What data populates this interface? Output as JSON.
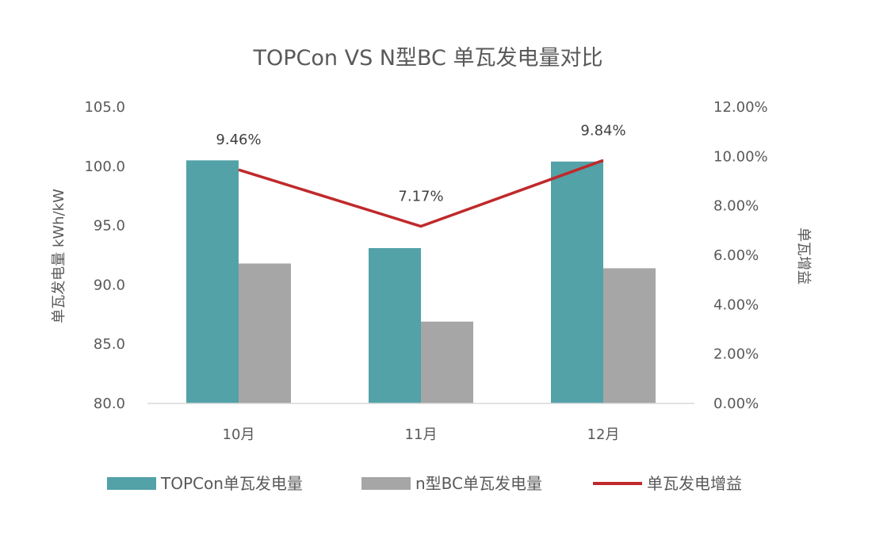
{
  "chart_data": {
    "type": "bar",
    "title": "TOPCon VS N型BC 单瓦发电量对比",
    "categories": [
      "10月",
      "11月",
      "12月"
    ],
    "series": [
      {
        "name": "TOPCon单瓦发电量",
        "type": "bar",
        "axis": "left",
        "color": "#52A2A8",
        "values": [
          100.5,
          93.1,
          100.4
        ]
      },
      {
        "name": "n型BC单瓦发电量",
        "type": "bar",
        "axis": "left",
        "color": "#A6A6A6",
        "values": [
          91.8,
          86.9,
          91.4
        ]
      },
      {
        "name": "单瓦发电增益",
        "type": "line",
        "axis": "right",
        "color": "#C0292B",
        "values": [
          9.46,
          7.17,
          9.84
        ],
        "labels": [
          "9.46%",
          "7.17%",
          "9.84%"
        ]
      }
    ],
    "ylabel": "单瓦发电量 kWh/kW",
    "y2label": "单瓦增益",
    "ylim": [
      80,
      105
    ],
    "y2lim": [
      0,
      12
    ],
    "yticks": [
      "80.0",
      "85.0",
      "90.0",
      "95.0",
      "100.0",
      "105.0"
    ],
    "y2ticks": [
      "0.00%",
      "2.00%",
      "4.00%",
      "6.00%",
      "8.00%",
      "10.00%",
      "12.00%"
    ],
    "grid": false,
    "legend_position": "bottom"
  }
}
